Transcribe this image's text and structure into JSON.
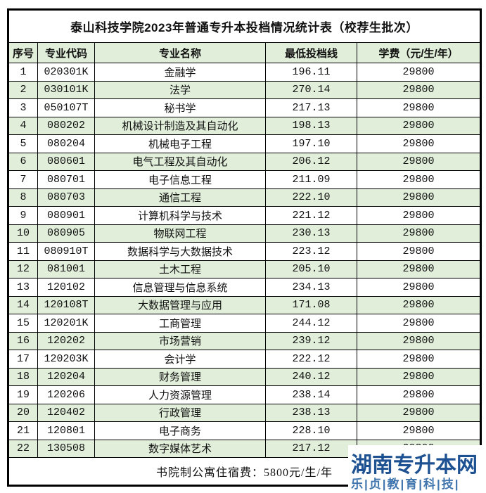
{
  "table": {
    "title": "泰山科技学院2023年普通专升本投档情况统计表（校荐生批次）",
    "headers": [
      "序号",
      "专业代码",
      "专业名称",
      "最低投档线",
      "学费（元/生/年）"
    ],
    "rows": [
      {
        "no": "1",
        "code": "020301K",
        "name": "金融学",
        "score": "196.11",
        "fee": "29800"
      },
      {
        "no": "2",
        "code": "030101K",
        "name": "法学",
        "score": "270.14",
        "fee": "29800"
      },
      {
        "no": "3",
        "code": "050107T",
        "name": "秘书学",
        "score": "217.13",
        "fee": "29800"
      },
      {
        "no": "4",
        "code": "080202",
        "name": "机械设计制造及其自动化",
        "score": "198.13",
        "fee": "29800"
      },
      {
        "no": "5",
        "code": "080204",
        "name": "机械电子工程",
        "score": "197.10",
        "fee": "29800"
      },
      {
        "no": "6",
        "code": "080601",
        "name": "电气工程及其自动化",
        "score": "206.12",
        "fee": "29800"
      },
      {
        "no": "7",
        "code": "080701",
        "name": "电子信息工程",
        "score": "211.09",
        "fee": "29800"
      },
      {
        "no": "8",
        "code": "080703",
        "name": "通信工程",
        "score": "222.10",
        "fee": "29800"
      },
      {
        "no": "9",
        "code": "080901",
        "name": "计算机科学与技术",
        "score": "221.12",
        "fee": "29800"
      },
      {
        "no": "10",
        "code": "080905",
        "name": "物联网工程",
        "score": "230.13",
        "fee": "29800"
      },
      {
        "no": "11",
        "code": "080910T",
        "name": "数据科学与大数据技术",
        "score": "223.12",
        "fee": "29800"
      },
      {
        "no": "12",
        "code": "081001",
        "name": "土木工程",
        "score": "205.10",
        "fee": "29800"
      },
      {
        "no": "13",
        "code": "120102",
        "name": "信息管理与信息系统",
        "score": "234.13",
        "fee": "29800"
      },
      {
        "no": "14",
        "code": "120108T",
        "name": "大数据管理与应用",
        "score": "171.08",
        "fee": "29800"
      },
      {
        "no": "15",
        "code": "120201K",
        "name": "工商管理",
        "score": "244.12",
        "fee": "29800"
      },
      {
        "no": "16",
        "code": "120202",
        "name": "市场营销",
        "score": "239.12",
        "fee": "29800"
      },
      {
        "no": "17",
        "code": "120203K",
        "name": "会计学",
        "score": "222.12",
        "fee": "29800"
      },
      {
        "no": "18",
        "code": "120204",
        "name": "财务管理",
        "score": "240.12",
        "fee": "29800"
      },
      {
        "no": "19",
        "code": "120206",
        "name": "人力资源管理",
        "score": "238.14",
        "fee": "29800"
      },
      {
        "no": "20",
        "code": "120402",
        "name": "行政管理",
        "score": "238.13",
        "fee": "29800"
      },
      {
        "no": "21",
        "code": "120801",
        "name": "电子商务",
        "score": "228.10",
        "fee": "29800"
      },
      {
        "no": "22",
        "code": "130508",
        "name": "数字媒体艺术",
        "score": "217.12",
        "fee": "29800"
      }
    ],
    "footer": "书院制公寓住宿费：5800元/生/年",
    "colors": {
      "stripe_bg": "#e1eeda",
      "header_bg": "#e1eeda",
      "border": "#000000"
    }
  },
  "watermark": {
    "line1": "湖南专升本网",
    "line2": "乐|贞|教|育|科|技|",
    "color_primary": "#1d5191",
    "color_secondary": "#4076ad"
  }
}
